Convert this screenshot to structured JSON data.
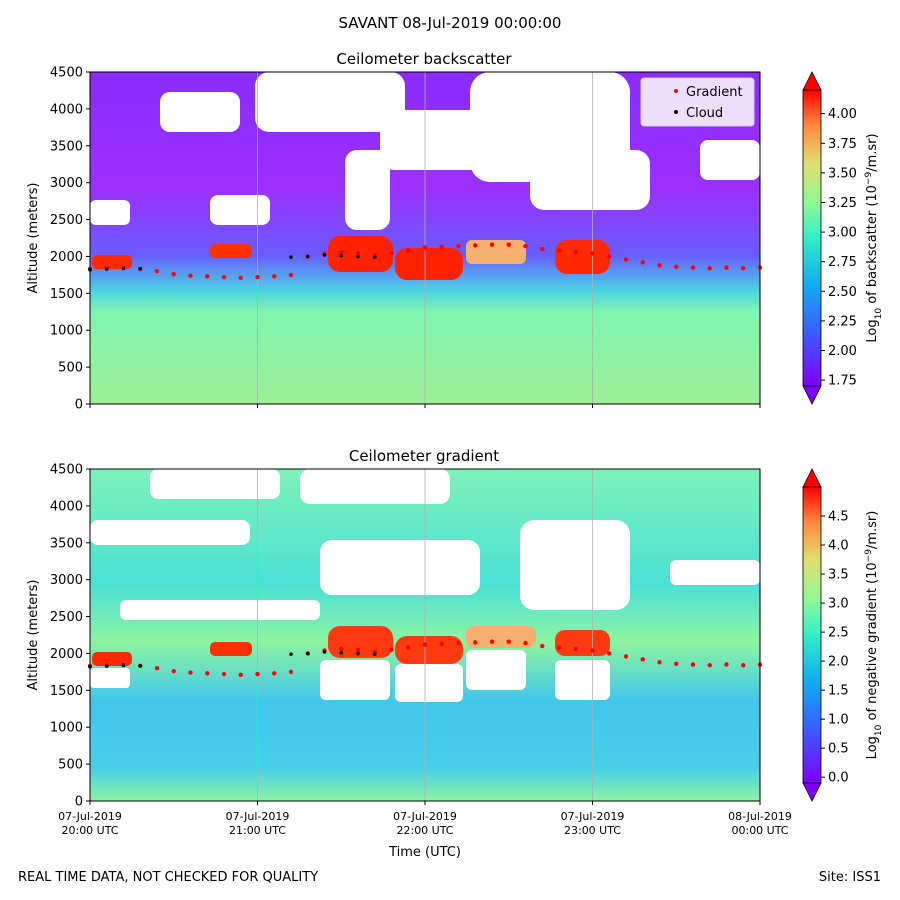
{
  "figure": {
    "title": "SAVANT 08-Jul-2019 00:00:00",
    "footer_left": "REAL TIME DATA, NOT CHECKED FOR QUALITY",
    "footer_right": "Site: ISS1"
  },
  "chart_data": [
    {
      "type": "heatmap",
      "title": "Ceilometer backscatter",
      "ylabel": "Altitude (meters)",
      "xlabel": "",
      "ylim": [
        0,
        4500
      ],
      "yticks": [
        "0",
        "500",
        "1000",
        "1500",
        "2000",
        "2500",
        "3000",
        "3500",
        "4000",
        "4500"
      ],
      "xlim": [
        "2019-07-07T20:00",
        "2019-07-08T00:00"
      ],
      "colorbar": {
        "label_prefix": "Log",
        "label_sub": "10",
        "label_mid": " of backscatter (10",
        "label_sup": "−9",
        "label_end": "/m.sr)",
        "ticks": [
          "1.75",
          "2.00",
          "2.25",
          "2.50",
          "2.75",
          "3.00",
          "3.25",
          "3.50",
          "3.75",
          "4.00"
        ],
        "range": [
          1.7,
          4.2
        ]
      },
      "legend": {
        "position": "top-right",
        "entries": [
          {
            "name": "Gradient",
            "color": "#ff0000"
          },
          {
            "name": "Cloud",
            "color": "#000000"
          }
        ]
      },
      "gridlines_x": true
    },
    {
      "type": "heatmap",
      "title": "Ceilometer gradient",
      "ylabel": "Altitude (meters)",
      "xlabel": "Time (UTC)",
      "ylim": [
        0,
        4500
      ],
      "yticks": [
        "0",
        "500",
        "1000",
        "1500",
        "2000",
        "2500",
        "3000",
        "3500",
        "4000",
        "4500"
      ],
      "xticks": [
        {
          "line1": "07-Jul-2019",
          "line2": "20:00 UTC"
        },
        {
          "line1": "07-Jul-2019",
          "line2": "21:00 UTC"
        },
        {
          "line1": "07-Jul-2019",
          "line2": "22:00 UTC"
        },
        {
          "line1": "07-Jul-2019",
          "line2": "23:00 UTC"
        },
        {
          "line1": "08-Jul-2019",
          "line2": "00:00 UTC"
        }
      ],
      "xlim": [
        "2019-07-07T20:00",
        "2019-07-08T00:00"
      ],
      "colorbar": {
        "label_prefix": "Log",
        "label_sub": "10",
        "label_mid": " of negative gradient (10",
        "label_sup": "−9",
        "label_end": "/m.sr)",
        "ticks": [
          "0.0",
          "0.5",
          "1.0",
          "1.5",
          "2.0",
          "2.5",
          "3.0",
          "3.5",
          "4.0",
          "4.5"
        ],
        "range": [
          -0.1,
          5.0
        ]
      },
      "gridlines_x": true
    }
  ],
  "gradient_track": [
    [
      0.0,
      1830
    ],
    [
      0.1,
      1840
    ],
    [
      0.2,
      1845
    ],
    [
      0.3,
      1830
    ],
    [
      0.4,
      1800
    ],
    [
      0.5,
      1760
    ],
    [
      0.6,
      1740
    ],
    [
      0.7,
      1730
    ],
    [
      0.8,
      1720
    ],
    [
      0.9,
      1710
    ],
    [
      1.0,
      1720
    ],
    [
      1.1,
      1730
    ],
    [
      1.2,
      1750
    ],
    [
      1.3,
      2000
    ],
    [
      1.4,
      2040
    ],
    [
      1.5,
      2060
    ],
    [
      1.6,
      2050
    ],
    [
      1.7,
      2020
    ],
    [
      1.8,
      2050
    ],
    [
      1.9,
      2080
    ],
    [
      2.0,
      2120
    ],
    [
      2.1,
      2130
    ],
    [
      2.2,
      2140
    ],
    [
      2.3,
      2150
    ],
    [
      2.4,
      2160
    ],
    [
      2.5,
      2160
    ],
    [
      2.6,
      2140
    ],
    [
      2.7,
      2100
    ],
    [
      2.8,
      2080
    ],
    [
      2.9,
      2060
    ],
    [
      3.0,
      2040
    ],
    [
      3.1,
      2000
    ],
    [
      3.2,
      1960
    ],
    [
      3.3,
      1920
    ],
    [
      3.4,
      1880
    ],
    [
      3.5,
      1860
    ],
    [
      3.6,
      1850
    ],
    [
      3.7,
      1840
    ],
    [
      3.8,
      1850
    ],
    [
      3.9,
      1840
    ],
    [
      4.0,
      1850
    ]
  ],
  "cloud_track": [
    [
      0.0,
      1820
    ],
    [
      0.1,
      1830
    ],
    [
      0.2,
      1840
    ],
    [
      0.3,
      1835
    ],
    [
      1.2,
      1990
    ],
    [
      1.3,
      2000
    ],
    [
      1.4,
      2020
    ],
    [
      1.5,
      2010
    ],
    [
      1.6,
      2000
    ],
    [
      1.7,
      1990
    ]
  ]
}
